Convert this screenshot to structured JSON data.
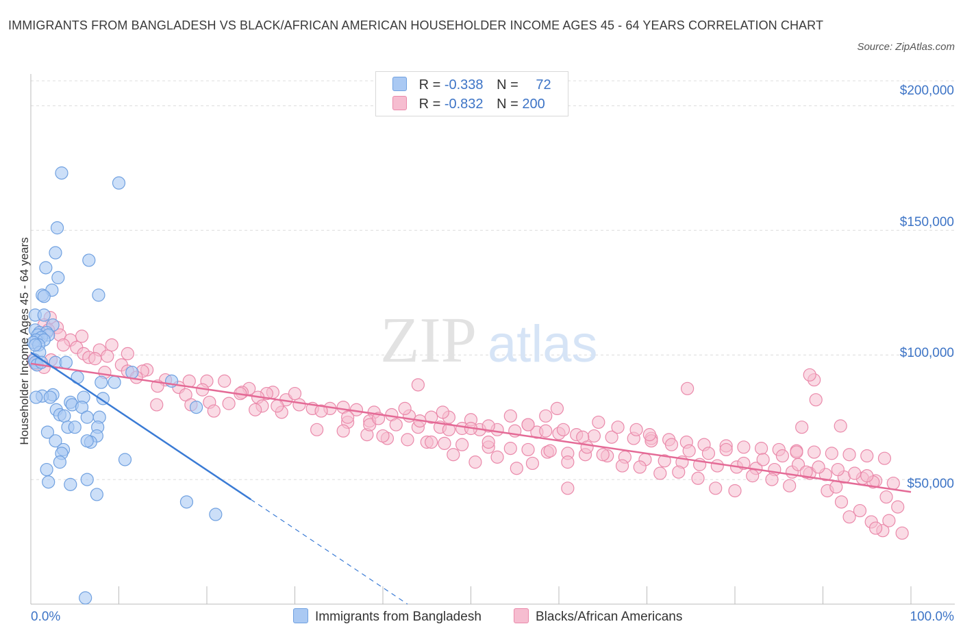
{
  "title": "IMMIGRANTS FROM BANGLADESH VS BLACK/AFRICAN AMERICAN HOUSEHOLDER INCOME AGES 45 - 64 YEARS CORRELATION CHART",
  "source": "Source: ZipAtlas.com",
  "watermark": {
    "zip": "ZIP",
    "atlas": "atlas"
  },
  "legend": {
    "r_label": "R =",
    "n_label": "N =",
    "series": [
      {
        "name": "Immigrants from Bangladesh",
        "r": "-0.338",
        "n": "72",
        "fill": "#aac9f3",
        "stroke": "#6fa0e0"
      },
      {
        "name": "Blacks/African Americans",
        "r": "-0.832",
        "n": "200",
        "fill": "#f6bdd0",
        "stroke": "#ea89aa"
      }
    ]
  },
  "colors": {
    "accent": "#3d74c6",
    "blue_line": "#3a7bd5",
    "pink_line": "#e46a96",
    "grid": "#dcdcdc"
  },
  "chart_data": {
    "type": "scatter",
    "title": "IMMIGRANTS FROM BANGLADESH VS BLACK/AFRICAN AMERICAN HOUSEHOLDER INCOME AGES 45 - 64 YEARS CORRELATION CHART",
    "ylabel": "Householder Income Ages 45 - 64 years",
    "xlim": [
      0,
      100
    ],
    "ylim": [
      0,
      210000
    ],
    "y_ticks": [
      50000,
      100000,
      150000,
      200000
    ],
    "y_tick_labels": [
      "$50,000",
      "$100,000",
      "$150,000",
      "$200,000"
    ],
    "x_tick_labels": [
      "0.0%",
      "100.0%"
    ],
    "grid": "horizontal dashed",
    "legend_position": "top-center",
    "series": [
      {
        "name": "Immigrants from Bangladesh",
        "points": [
          [
            3.5,
            173000
          ],
          [
            10,
            169000
          ],
          [
            3,
            151000
          ],
          [
            2.8,
            141000
          ],
          [
            6.6,
            138000
          ],
          [
            1.7,
            135000
          ],
          [
            3.1,
            131000
          ],
          [
            2.4,
            126000
          ],
          [
            7.7,
            124000
          ],
          [
            1.3,
            124000
          ],
          [
            1.5,
            123500
          ],
          [
            0.5,
            116000
          ],
          [
            1.5,
            116000
          ],
          [
            2.5,
            112000
          ],
          [
            0.5,
            110000
          ],
          [
            1,
            109000
          ],
          [
            1.8,
            109000
          ],
          [
            0.8,
            108000
          ],
          [
            2,
            108000
          ],
          [
            1.2,
            107000
          ],
          [
            0.6,
            106000
          ],
          [
            1.5,
            106000
          ],
          [
            0.3,
            105000
          ],
          [
            0.9,
            104000
          ],
          [
            1,
            101000
          ],
          [
            0.4,
            98000
          ],
          [
            0.5,
            97000
          ],
          [
            2.8,
            97000
          ],
          [
            4,
            97000
          ],
          [
            0.7,
            96000
          ],
          [
            11.5,
            93000
          ],
          [
            5.3,
            91000
          ],
          [
            8,
            89000
          ],
          [
            9.5,
            89000
          ],
          [
            16,
            89500
          ],
          [
            2.5,
            84000
          ],
          [
            1.3,
            83500
          ],
          [
            0.6,
            83000
          ],
          [
            2.2,
            83000
          ],
          [
            6,
            83000
          ],
          [
            8.2,
            82500
          ],
          [
            4.5,
            81000
          ],
          [
            4.7,
            80000
          ],
          [
            5.8,
            79000
          ],
          [
            18.8,
            79000
          ],
          [
            2.9,
            78000
          ],
          [
            3.3,
            76000
          ],
          [
            3.8,
            75500
          ],
          [
            6.4,
            75000
          ],
          [
            7.8,
            75000
          ],
          [
            4.2,
            71000
          ],
          [
            5,
            71000
          ],
          [
            7.6,
            71000
          ],
          [
            1.9,
            69000
          ],
          [
            7.5,
            67500
          ],
          [
            2.8,
            65500
          ],
          [
            6.8,
            65000
          ],
          [
            6.4,
            65500
          ],
          [
            3.7,
            62000
          ],
          [
            3.5,
            60500
          ],
          [
            10.7,
            58000
          ],
          [
            3.3,
            57000
          ],
          [
            1.8,
            54000
          ],
          [
            6.4,
            50000
          ],
          [
            2,
            49000
          ],
          [
            4.5,
            48000
          ],
          [
            7.5,
            44000
          ],
          [
            17.7,
            41000
          ],
          [
            21,
            36000
          ],
          [
            6.2,
            2500
          ],
          [
            0.5,
            104000
          ],
          [
            1.2,
            97000
          ]
        ]
      },
      {
        "name": "Blacks/African Americans",
        "points": [
          [
            2.2,
            115000
          ],
          [
            1.5,
            112000
          ],
          [
            3,
            111000
          ],
          [
            2,
            110000
          ],
          [
            3.3,
            108000
          ],
          [
            5.8,
            107500
          ],
          [
            4.5,
            106000
          ],
          [
            3.7,
            104000
          ],
          [
            9.2,
            104000
          ],
          [
            5.2,
            103000
          ],
          [
            7.8,
            102000
          ],
          [
            11,
            100500
          ],
          [
            6,
            100500
          ],
          [
            8.7,
            99500
          ],
          [
            6.6,
            99000
          ],
          [
            7.3,
            98500
          ],
          [
            0.3,
            98000
          ],
          [
            2.3,
            98000
          ],
          [
            0.5,
            96500
          ],
          [
            10.3,
            96000
          ],
          [
            1.5,
            95000
          ],
          [
            13.2,
            94000
          ],
          [
            11,
            93500
          ],
          [
            12.7,
            93500
          ],
          [
            8.4,
            93000
          ],
          [
            12,
            91000
          ],
          [
            15.3,
            90000
          ],
          [
            18,
            89500
          ],
          [
            20,
            89500
          ],
          [
            22,
            89500
          ],
          [
            14.4,
            87500
          ],
          [
            16.8,
            87000
          ],
          [
            24.8,
            86500
          ],
          [
            19.5,
            86000
          ],
          [
            24,
            85000
          ],
          [
            27.5,
            85000
          ],
          [
            26.8,
            84500
          ],
          [
            17.6,
            84000
          ],
          [
            23.8,
            84500
          ],
          [
            25.8,
            83000
          ],
          [
            29,
            82000
          ],
          [
            20.3,
            81000
          ],
          [
            22.5,
            80500
          ],
          [
            26.3,
            79500
          ],
          [
            30.5,
            80000
          ],
          [
            18.2,
            80000
          ],
          [
            14.3,
            80000
          ],
          [
            32,
            78500
          ],
          [
            34,
            78500
          ],
          [
            35.5,
            79000
          ],
          [
            37,
            78000
          ],
          [
            25.5,
            78000
          ],
          [
            20.8,
            77500
          ],
          [
            28.5,
            77000
          ],
          [
            39,
            77000
          ],
          [
            41,
            76000
          ],
          [
            43,
            75500
          ],
          [
            45.5,
            75000
          ],
          [
            47.5,
            75000
          ],
          [
            50,
            74000
          ],
          [
            36,
            73000
          ],
          [
            38.5,
            73500
          ],
          [
            41.5,
            72000
          ],
          [
            44,
            71000
          ],
          [
            46.5,
            71000
          ],
          [
            49,
            70500
          ],
          [
            51,
            70000
          ],
          [
            53,
            70000
          ],
          [
            55,
            69500
          ],
          [
            57.5,
            69000
          ],
          [
            60,
            68500
          ],
          [
            62,
            68000
          ],
          [
            64,
            67500
          ],
          [
            66,
            67000
          ],
          [
            68.5,
            66500
          ],
          [
            70.5,
            66500
          ],
          [
            72.5,
            66000
          ],
          [
            74.5,
            65000
          ],
          [
            76.5,
            64000
          ],
          [
            79,
            63500
          ],
          [
            81,
            63000
          ],
          [
            83,
            62500
          ],
          [
            85,
            62000
          ],
          [
            87,
            61500
          ],
          [
            89,
            61000
          ],
          [
            91,
            60500
          ],
          [
            93,
            60000
          ],
          [
            95,
            59500
          ],
          [
            97,
            58500
          ],
          [
            32.5,
            70000
          ],
          [
            35.5,
            69500
          ],
          [
            38.2,
            68000
          ],
          [
            40.5,
            66500
          ],
          [
            42.8,
            66000
          ],
          [
            45,
            65000
          ],
          [
            47,
            64500
          ],
          [
            49,
            64000
          ],
          [
            52,
            63000
          ],
          [
            54.5,
            62500
          ],
          [
            56.5,
            62000
          ],
          [
            58.7,
            61000
          ],
          [
            61,
            60500
          ],
          [
            63,
            60000
          ],
          [
            65.5,
            59500
          ],
          [
            67.5,
            59000
          ],
          [
            69.8,
            58000
          ],
          [
            72,
            57500
          ],
          [
            74,
            57000
          ],
          [
            76,
            56000
          ],
          [
            78,
            55500
          ],
          [
            80.2,
            55000
          ],
          [
            82.4,
            54500
          ],
          [
            84.5,
            54000
          ],
          [
            86.5,
            53000
          ],
          [
            88.5,
            52500
          ],
          [
            90.3,
            52000
          ],
          [
            92.4,
            51000
          ],
          [
            94.5,
            50500
          ],
          [
            96,
            49500
          ],
          [
            98,
            48500
          ],
          [
            38.5,
            72000
          ],
          [
            44.2,
            73500
          ],
          [
            46.8,
            77000
          ],
          [
            47.5,
            70000
          ],
          [
            50,
            70500
          ],
          [
            52,
            71500
          ],
          [
            54.5,
            75500
          ],
          [
            56.5,
            72000
          ],
          [
            58.5,
            69500
          ],
          [
            60.5,
            70000
          ],
          [
            62.7,
            67000
          ],
          [
            64.5,
            73000
          ],
          [
            66.7,
            71000
          ],
          [
            68.8,
            70000
          ],
          [
            70.5,
            65500
          ],
          [
            72.8,
            64000
          ],
          [
            74.8,
            61500
          ],
          [
            77,
            60500
          ],
          [
            79,
            62000
          ],
          [
            81,
            56500
          ],
          [
            83.2,
            58000
          ],
          [
            85.4,
            59500
          ],
          [
            87.2,
            56000
          ],
          [
            89.5,
            55000
          ],
          [
            91.7,
            54000
          ],
          [
            93.6,
            52500
          ],
          [
            95.7,
            49000
          ],
          [
            97.2,
            43000
          ],
          [
            98.5,
            39000
          ],
          [
            96.8,
            29500
          ],
          [
            99,
            28500
          ],
          [
            33,
            77500
          ],
          [
            30,
            84500
          ],
          [
            28,
            79500
          ],
          [
            36,
            75000
          ],
          [
            39.5,
            74500
          ],
          [
            42.5,
            78500
          ],
          [
            45.5,
            65000
          ],
          [
            48,
            60000
          ],
          [
            50.5,
            57000
          ],
          [
            53,
            59000
          ],
          [
            55.2,
            54500
          ],
          [
            57,
            56500
          ],
          [
            59,
            61500
          ],
          [
            61,
            57000
          ],
          [
            63.2,
            63000
          ],
          [
            65,
            60000
          ],
          [
            67.2,
            55500
          ],
          [
            69.2,
            55000
          ],
          [
            71.5,
            52500
          ],
          [
            73.6,
            53000
          ],
          [
            75.8,
            50500
          ],
          [
            77.8,
            46500
          ],
          [
            80,
            45500
          ],
          [
            82,
            51500
          ],
          [
            84.2,
            50000
          ],
          [
            86.2,
            47500
          ],
          [
            88.1,
            53000
          ],
          [
            90.5,
            45500
          ],
          [
            92.1,
            41000
          ],
          [
            94.2,
            37500
          ],
          [
            93,
            35000
          ],
          [
            95.5,
            33000
          ],
          [
            96,
            30500
          ],
          [
            97.5,
            33500
          ],
          [
            91.5,
            47000
          ],
          [
            89.2,
            82000
          ],
          [
            87,
            61000
          ],
          [
            89,
            90000
          ],
          [
            87.6,
            71000
          ],
          [
            88.5,
            92000
          ],
          [
            92,
            71500
          ],
          [
            95,
            51500
          ],
          [
            56.5,
            72000
          ],
          [
            74.6,
            86500
          ],
          [
            58.5,
            75500
          ],
          [
            59.8,
            78500
          ],
          [
            44,
            88000
          ],
          [
            52,
            65000
          ],
          [
            40,
            67500
          ],
          [
            61,
            46500
          ],
          [
            70.3,
            68000
          ]
        ]
      }
    ],
    "trendlines": [
      {
        "series": "Immigrants from Bangladesh",
        "solid_from": [
          0,
          101000
        ],
        "solid_to": [
          25,
          42000
        ],
        "dashed_to": [
          42.8,
          0
        ]
      },
      {
        "series": "Blacks/African Americans",
        "from": [
          0,
          96500
        ],
        "to": [
          100,
          45000
        ]
      }
    ]
  }
}
